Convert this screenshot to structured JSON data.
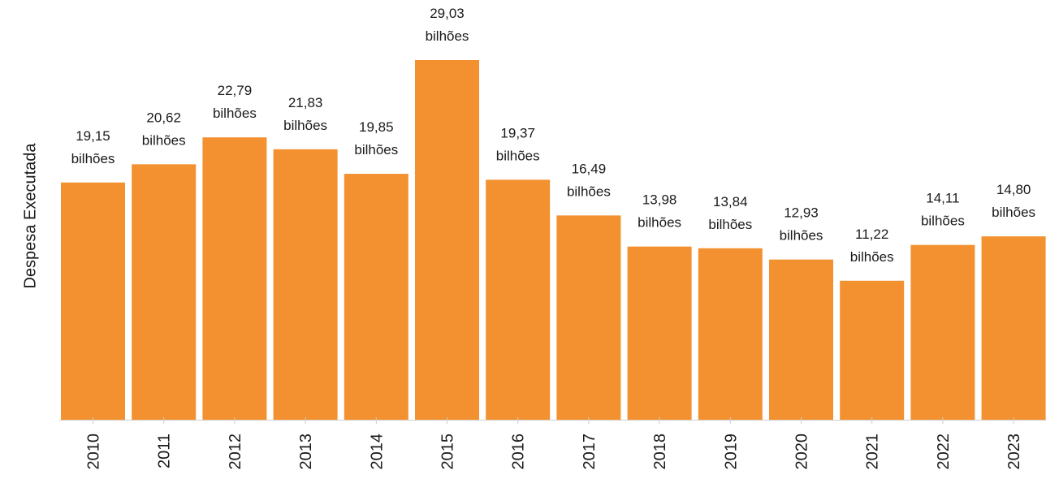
{
  "chart_data": {
    "type": "bar",
    "ylabel": "Despesa Executada",
    "xlabel": "",
    "categories": [
      "2010",
      "2011",
      "2012",
      "2013",
      "2014",
      "2015",
      "2016",
      "2017",
      "2018",
      "2019",
      "2020",
      "2021",
      "2022",
      "2023"
    ],
    "values": [
      19.15,
      20.62,
      22.79,
      21.83,
      19.85,
      29.03,
      19.37,
      16.49,
      13.98,
      13.84,
      12.93,
      11.22,
      14.11,
      14.8
    ],
    "value_labels": [
      "19,15",
      "20,62",
      "22,79",
      "21,83",
      "19,85",
      "29,03",
      "19,37",
      "16,49",
      "13,98",
      "13,84",
      "12,93",
      "11,22",
      "14,11",
      "14,80"
    ],
    "unit_label": "bilhões",
    "ylim": [
      0,
      29.03
    ],
    "grid": false,
    "colors": {
      "bar": "#f39131",
      "text": "#1a1a1a"
    }
  }
}
